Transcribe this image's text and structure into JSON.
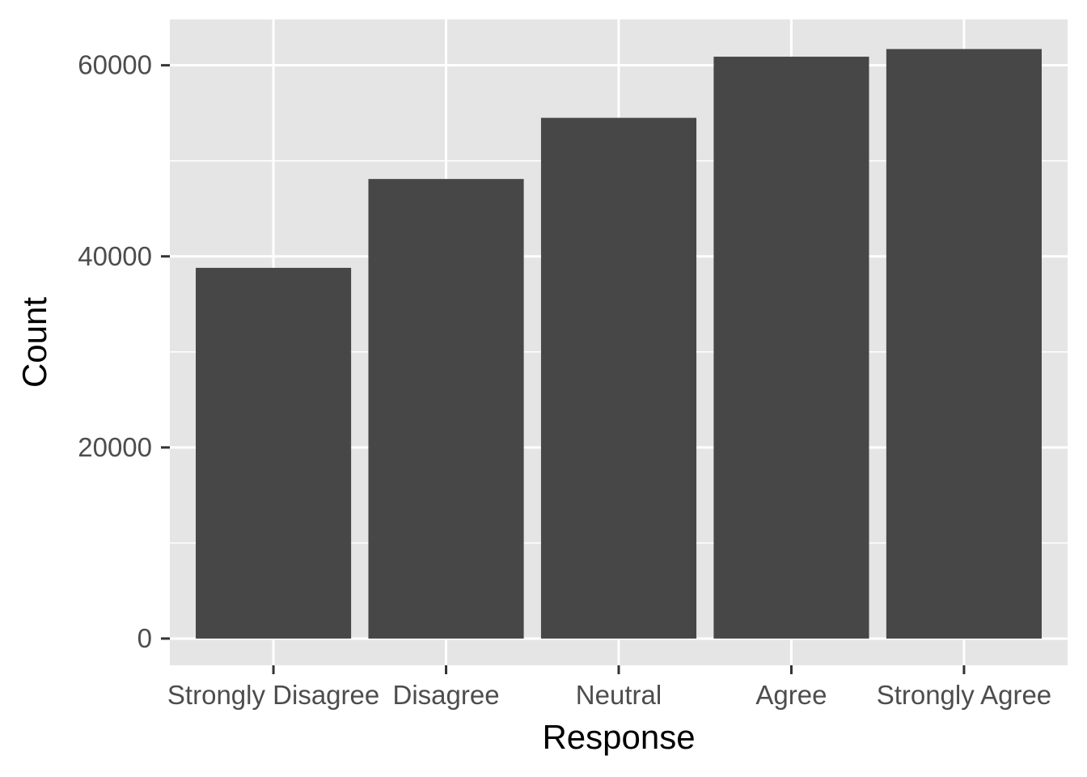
{
  "chart_data": {
    "type": "bar",
    "title": "",
    "xlabel": "Response",
    "ylabel": "Count",
    "categories": [
      "Strongly Disagree",
      "Disagree",
      "Neutral",
      "Agree",
      "Strongly Agree"
    ],
    "values": [
      38800,
      48100,
      54500,
      60900,
      61700
    ],
    "yticks": [
      0,
      20000,
      40000,
      60000
    ],
    "ytick_labels": [
      "0",
      "20000",
      "40000",
      "60000"
    ],
    "ylim": [
      -2800,
      64800
    ],
    "grid": true,
    "legend": "none",
    "colors": {
      "bar": "#474747",
      "panel": "#e5e5e5",
      "grid": "#ffffff",
      "tick_text": "#4d4d4d",
      "axis_title": "#000000",
      "tick_mark": "#333333"
    }
  }
}
